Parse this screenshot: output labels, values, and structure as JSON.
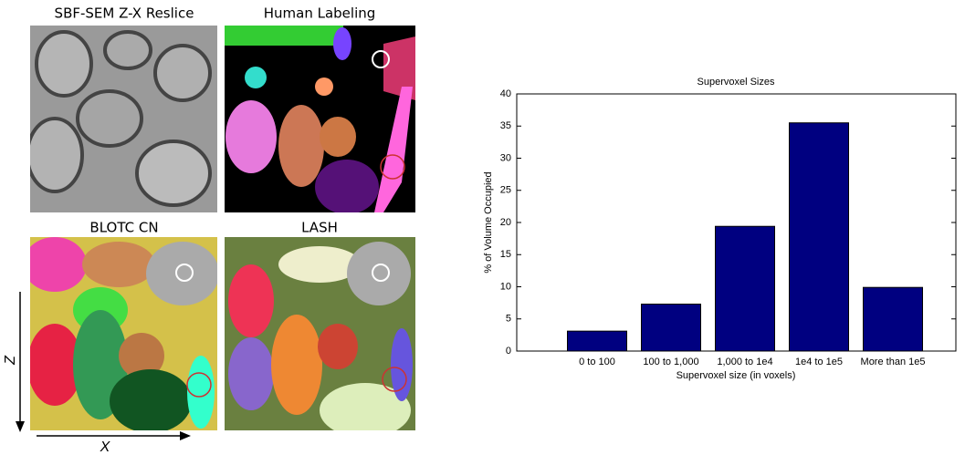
{
  "panels": [
    "SBF-SEM Z-X Reslice",
    "Human Labeling",
    "BLOTC CN",
    "LASH"
  ],
  "axis_labels": {
    "z": "Z",
    "x": "X"
  },
  "chart_data": {
    "type": "bar",
    "title": "Supervoxel Sizes",
    "x_label": "Supervoxel size (in voxels)",
    "y_label": "% of Volume Occupied",
    "categories": [
      "0 to 100",
      "100 to 1,000",
      "1,000 to 1e4",
      "1e4 to 1e5",
      "More than 1e5"
    ],
    "values": [
      3.1,
      7.3,
      19.4,
      35.5,
      9.9
    ],
    "color": "#000080",
    "ylim": [
      0,
      40
    ],
    "yticks": [
      0,
      5,
      10,
      15,
      20,
      25,
      30,
      35,
      40
    ]
  }
}
